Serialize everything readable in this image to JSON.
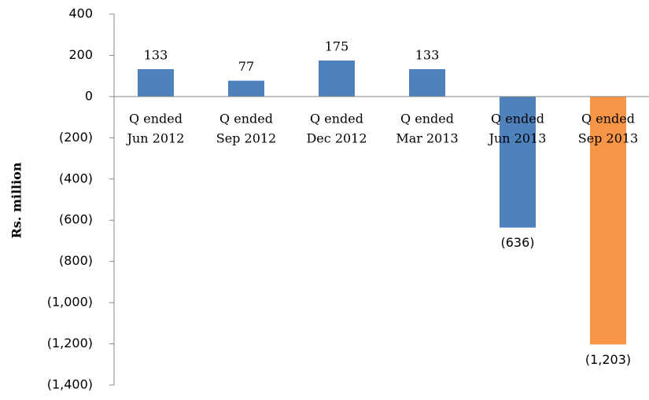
{
  "chart_data": {
    "type": "bar",
    "y_label": "Rs. million",
    "categories": [
      [
        "Q ended",
        "Jun 2012"
      ],
      [
        "Q ended",
        "Sep 2012"
      ],
      [
        "Q ended",
        "Dec 2012"
      ],
      [
        "Q ended",
        "Mar 2013"
      ],
      [
        "Q ended",
        "Jun 2013"
      ],
      [
        "Q ended",
        "Sep 2013"
      ]
    ],
    "values": [
      133,
      77,
      175,
      133,
      -636,
      -1203
    ],
    "value_labels": [
      "133",
      "77",
      "175",
      "133",
      "(636)",
      "(1,203)"
    ],
    "colors": [
      "#4f81bd",
      "#4f81bd",
      "#4f81bd",
      "#4f81bd",
      "#4f81bd",
      "#f79646"
    ],
    "ylim": [
      -1400,
      400
    ],
    "yticks": [
      400,
      200,
      0,
      {
        "value": -200,
        "label": "(200)"
      },
      {
        "value": -400,
        "label": "(400)"
      },
      {
        "value": -600,
        "label": "(600)"
      },
      {
        "value": -800,
        "label": "(800)"
      },
      {
        "value": -1000,
        "label": "(1,000)"
      },
      {
        "value": -1200,
        "label": "(1,200)"
      },
      {
        "value": -1400,
        "label": "(1,400)"
      }
    ],
    "grid": false
  }
}
